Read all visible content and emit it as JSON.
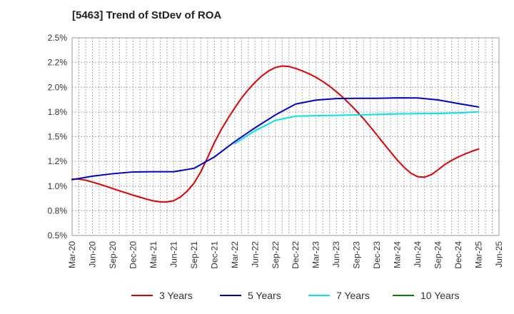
{
  "chart_title": "[5463]  Trend of StDev of ROA",
  "chart_data": {
    "type": "line",
    "title": "[5463]  Trend of StDev of ROA",
    "xlabel": "",
    "ylabel": "",
    "x_ticks": [
      "Mar-20",
      "Jun-20",
      "Sep-20",
      "Dec-20",
      "Mar-21",
      "Jun-21",
      "Sep-21",
      "Dec-21",
      "Mar-22",
      "Jun-22",
      "Sep-22",
      "Dec-22",
      "Mar-23",
      "Jun-23",
      "Sep-23",
      "Dec-23",
      "Mar-24",
      "Jun-24",
      "Sep-24",
      "Dec-24",
      "Mar-25",
      "Jun-25"
    ],
    "y_ticks": [
      "0.5%",
      "0.8%",
      "1.0%",
      "1.2%",
      "1.5%",
      "1.8%",
      "2.0%",
      "2.2%",
      "2.5%"
    ],
    "ylim": [
      0.5,
      2.5
    ],
    "grid": true,
    "legend_position": "bottom",
    "series": [
      {
        "name": "3 Years",
        "color": "#e00000",
        "x": [
          "Mar-20",
          "Apr-20",
          "May-20",
          "Jun-20",
          "Jul-20",
          "Aug-20",
          "Sep-20",
          "Oct-20",
          "Nov-20",
          "Dec-20",
          "Jan-21",
          "Feb-21",
          "Mar-21",
          "Apr-21",
          "May-21",
          "Jun-21",
          "Jul-21",
          "Aug-21",
          "Sep-21",
          "Oct-21",
          "Nov-21",
          "Dec-21",
          "Jan-22",
          "Feb-22",
          "Mar-22",
          "Apr-22",
          "May-22",
          "Jun-22",
          "Jul-22",
          "Aug-22",
          "Sep-22",
          "Oct-22",
          "Nov-22",
          "Dec-22",
          "Jan-23",
          "Feb-23",
          "Mar-23",
          "Apr-23",
          "May-23",
          "Jun-23",
          "Jul-23",
          "Aug-23",
          "Sep-23",
          "Oct-23",
          "Nov-23",
          "Dec-23",
          "Jan-24",
          "Feb-24",
          "Mar-24",
          "Apr-24",
          "May-24",
          "Jun-24",
          "Jul-24",
          "Aug-24",
          "Sep-24",
          "Oct-24",
          "Nov-24",
          "Dec-24",
          "Jan-25",
          "Feb-25",
          "Mar-25"
        ],
        "values": [
          1.07,
          1.07,
          1.06,
          1.04,
          1.02,
          0.998,
          0.975,
          0.952,
          0.93,
          0.908,
          0.888,
          0.868,
          0.85,
          0.84,
          0.84,
          0.852,
          0.89,
          0.95,
          1.03,
          1.145,
          1.29,
          1.44,
          1.57,
          1.685,
          1.79,
          1.89,
          1.975,
          2.05,
          2.115,
          2.165,
          2.2,
          2.215,
          2.21,
          2.19,
          2.165,
          2.135,
          2.1,
          2.058,
          2.01,
          1.955,
          1.895,
          1.828,
          1.758,
          1.682,
          1.6,
          1.515,
          1.43,
          1.345,
          1.262,
          1.19,
          1.13,
          1.095,
          1.09,
          1.115,
          1.165,
          1.218,
          1.26,
          1.295,
          1.325,
          1.352,
          1.375
        ]
      },
      {
        "name": "5 Years",
        "color": "#0000cc",
        "x": [
          "Mar-20",
          "Jun-20",
          "Sep-20",
          "Dec-20",
          "Mar-21",
          "Jun-21",
          "Sep-21",
          "Dec-21",
          "Mar-22",
          "Jun-22",
          "Sep-22",
          "Dec-22",
          "Mar-23",
          "Jun-23",
          "Sep-23",
          "Dec-23",
          "Mar-24",
          "Jun-24",
          "Sep-24",
          "Dec-24",
          "Mar-25"
        ],
        "values": [
          1.065,
          1.1,
          1.125,
          1.143,
          1.145,
          1.145,
          1.18,
          1.295,
          1.45,
          1.59,
          1.72,
          1.83,
          1.87,
          1.885,
          1.888,
          1.888,
          1.893,
          1.892,
          1.872,
          1.835,
          1.8
        ]
      },
      {
        "name": "7 Years",
        "color": "#00e5e5",
        "x": [
          "Mar-22",
          "Jun-22",
          "Sep-22",
          "Dec-22",
          "Mar-23",
          "Jun-23",
          "Sep-23",
          "Dec-23",
          "Mar-24",
          "Jun-24",
          "Sep-24",
          "Dec-24",
          "Mar-25"
        ],
        "values": [
          1.43,
          1.56,
          1.665,
          1.708,
          1.712,
          1.716,
          1.72,
          1.725,
          1.73,
          1.733,
          1.735,
          1.74,
          1.752
        ]
      },
      {
        "name": "10 Years",
        "color": "#008000",
        "x": [],
        "values": []
      }
    ]
  }
}
